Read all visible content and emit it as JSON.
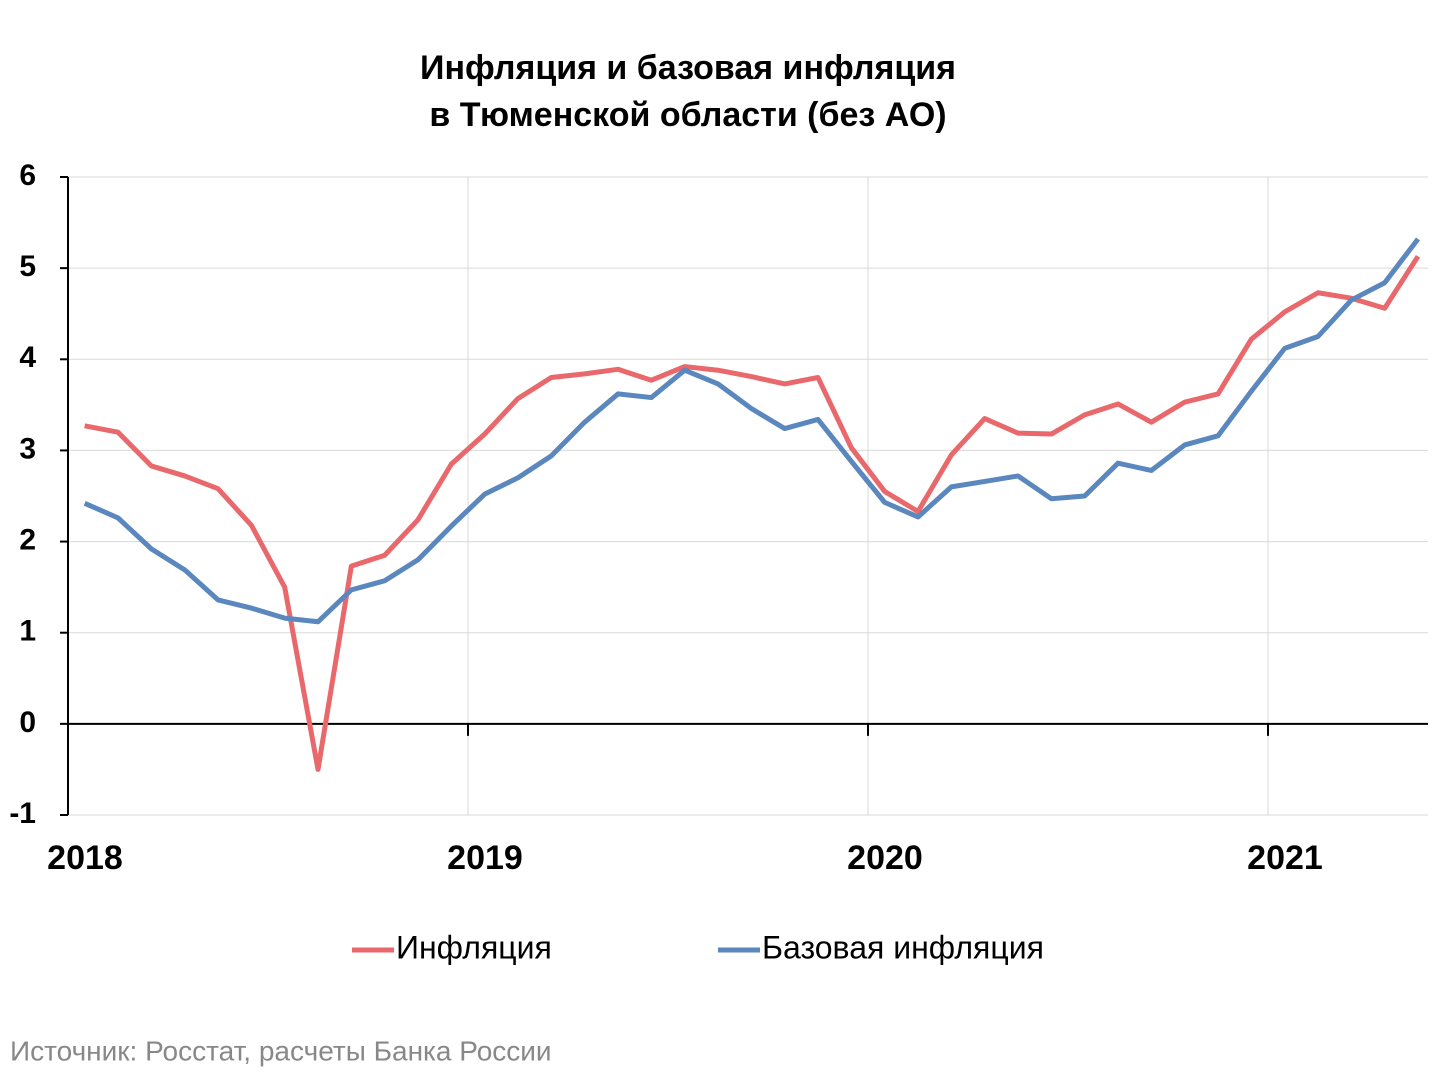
{
  "chart_data": {
    "type": "line",
    "title": [
      "Инфляция и базовая инфляция",
      "в  Тюменской области (без АО)"
    ],
    "source": "Источник: Росстат, расчеты Банка России",
    "x": [
      2018.0417,
      2018.125,
      2018.2083,
      2018.2917,
      2018.375,
      2018.4583,
      2018.5417,
      2018.625,
      2018.7083,
      2018.7917,
      2018.875,
      2018.9583,
      2019.0417,
      2019.125,
      2019.2083,
      2019.2917,
      2019.375,
      2019.4583,
      2019.5417,
      2019.625,
      2019.7083,
      2019.7917,
      2019.875,
      2019.9583,
      2020.0417,
      2020.125,
      2020.2083,
      2020.2917,
      2020.375,
      2020.4583,
      2020.5417,
      2020.625,
      2020.7083,
      2020.7917,
      2020.875,
      2020.9583,
      2021.0417,
      2021.125,
      2021.2083,
      2021.2917,
      2021.375
    ],
    "series": [
      {
        "name": "Инфляция",
        "color": "#e8686b",
        "values": [
          3.27,
          3.2,
          2.83,
          2.72,
          2.58,
          2.18,
          1.5,
          -0.5,
          1.73,
          1.85,
          2.24,
          2.85,
          3.18,
          3.57,
          3.8,
          3.84,
          3.89,
          3.77,
          3.92,
          3.88,
          3.81,
          3.73,
          3.8,
          3.03,
          2.55,
          2.33,
          2.95,
          3.35,
          3.19,
          3.18,
          3.39,
          3.51,
          3.31,
          3.53,
          3.62,
          4.22,
          4.52,
          4.73,
          4.67,
          4.56,
          5.13
        ]
      },
      {
        "name": "Базовая инфляция",
        "color": "#5b87bf",
        "values": [
          2.42,
          2.26,
          1.92,
          1.69,
          1.36,
          1.27,
          1.16,
          1.12,
          1.47,
          1.57,
          1.8,
          2.17,
          2.52,
          2.7,
          2.94,
          3.31,
          3.62,
          3.58,
          3.88,
          3.73,
          3.46,
          3.24,
          3.34,
          2.88,
          2.43,
          2.27,
          2.6,
          2.66,
          2.72,
          2.47,
          2.5,
          2.86,
          2.78,
          3.06,
          3.16,
          3.65,
          4.12,
          4.25,
          4.65,
          4.84,
          5.32
        ]
      }
    ],
    "xlim": [
      2018,
      2021.4
    ],
    "xticks": [
      2018,
      2019,
      2020,
      2021
    ],
    "ylim": [
      -1,
      6
    ],
    "yticks": [
      -1,
      0,
      1,
      2,
      3,
      4,
      5,
      6
    ],
    "grid": true,
    "legend": "bottom"
  }
}
